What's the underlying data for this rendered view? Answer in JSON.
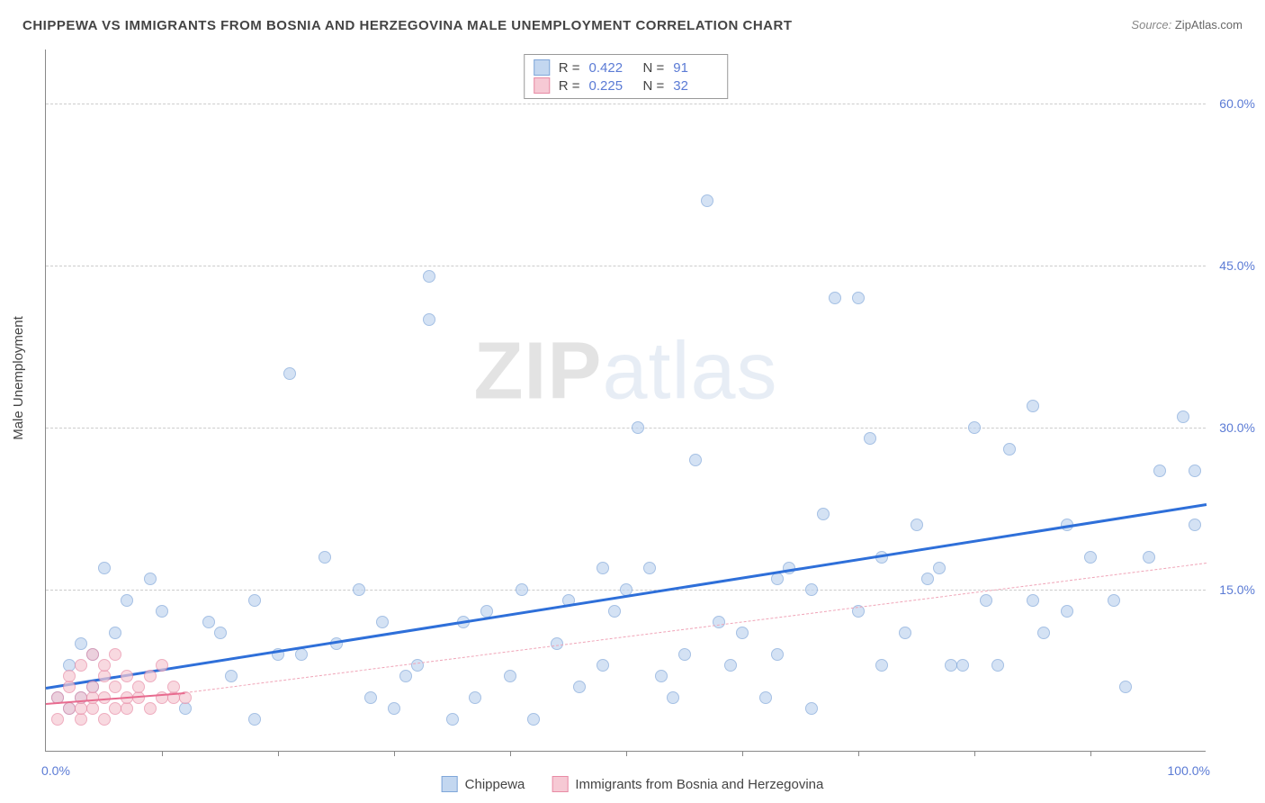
{
  "title": "CHIPPEWA VS IMMIGRANTS FROM BOSNIA AND HERZEGOVINA MALE UNEMPLOYMENT CORRELATION CHART",
  "source_label": "Source:",
  "source_name": "ZipAtlas.com",
  "y_axis_title": "Male Unemployment",
  "watermark_a": "ZIP",
  "watermark_b": "atlas",
  "chart": {
    "type": "scatter",
    "xlim": [
      0,
      100
    ],
    "ylim": [
      0,
      65
    ],
    "y_ticks": [
      15,
      30,
      45,
      60
    ],
    "y_tick_labels": [
      "15.0%",
      "30.0%",
      "45.0%",
      "60.0%"
    ],
    "x_axis_min_label": "0.0%",
    "x_axis_max_label": "100.0%",
    "x_tick_positions": [
      10,
      20,
      30,
      40,
      50,
      60,
      70,
      80,
      90
    ],
    "background": "#ffffff",
    "grid_color": "#cccccc",
    "series": [
      {
        "name": "Chippewa",
        "color_fill": "#c3d7f0",
        "color_stroke": "#7fa6d9",
        "marker_size": 14,
        "opacity": 0.7,
        "trend": {
          "x1": 0,
          "y1": 6.0,
          "x2": 100,
          "y2": 23.0,
          "color": "#2e6fd9",
          "width": 3,
          "dash": "solid"
        },
        "r": "0.422",
        "n": "91",
        "points": [
          [
            5,
            17
          ],
          [
            7,
            14
          ],
          [
            3,
            10
          ],
          [
            2,
            8
          ],
          [
            4,
            6
          ],
          [
            1,
            5
          ],
          [
            2,
            4
          ],
          [
            3,
            5
          ],
          [
            4,
            9
          ],
          [
            6,
            11
          ],
          [
            9,
            16
          ],
          [
            10,
            13
          ],
          [
            12,
            4
          ],
          [
            14,
            12
          ],
          [
            15,
            11
          ],
          [
            16,
            7
          ],
          [
            18,
            3
          ],
          [
            18,
            14
          ],
          [
            20,
            9
          ],
          [
            21,
            35
          ],
          [
            22,
            9
          ],
          [
            24,
            18
          ],
          [
            25,
            10
          ],
          [
            27,
            15
          ],
          [
            28,
            5
          ],
          [
            30,
            4
          ],
          [
            31,
            7
          ],
          [
            32,
            8
          ],
          [
            33,
            44
          ],
          [
            33,
            40
          ],
          [
            35,
            3
          ],
          [
            36,
            12
          ],
          [
            38,
            13
          ],
          [
            40,
            7
          ],
          [
            41,
            15
          ],
          [
            42,
            3
          ],
          [
            44,
            10
          ],
          [
            46,
            6
          ],
          [
            48,
            17
          ],
          [
            49,
            13
          ],
          [
            50,
            15
          ],
          [
            51,
            30
          ],
          [
            52,
            17
          ],
          [
            54,
            5
          ],
          [
            55,
            9
          ],
          [
            56,
            27
          ],
          [
            57,
            51
          ],
          [
            58,
            12
          ],
          [
            60,
            11
          ],
          [
            62,
            5
          ],
          [
            63,
            16
          ],
          [
            64,
            17
          ],
          [
            66,
            4
          ],
          [
            67,
            22
          ],
          [
            68,
            42
          ],
          [
            70,
            42
          ],
          [
            70,
            13
          ],
          [
            72,
            8
          ],
          [
            72,
            18
          ],
          [
            74,
            11
          ],
          [
            75,
            21
          ],
          [
            76,
            16
          ],
          [
            78,
            8
          ],
          [
            79,
            8
          ],
          [
            80,
            30
          ],
          [
            81,
            14
          ],
          [
            82,
            8
          ],
          [
            83,
            28
          ],
          [
            85,
            32
          ],
          [
            86,
            11
          ],
          [
            88,
            21
          ],
          [
            88,
            13
          ],
          [
            90,
            18
          ],
          [
            92,
            14
          ],
          [
            93,
            6
          ],
          [
            95,
            18
          ],
          [
            96,
            26
          ],
          [
            98,
            31
          ],
          [
            99,
            21
          ],
          [
            99,
            26
          ],
          [
            85,
            14
          ],
          [
            63,
            9
          ],
          [
            45,
            14
          ],
          [
            37,
            5
          ],
          [
            29,
            12
          ],
          [
            53,
            7
          ],
          [
            59,
            8
          ],
          [
            77,
            17
          ],
          [
            71,
            29
          ],
          [
            66,
            15
          ],
          [
            48,
            8
          ]
        ]
      },
      {
        "name": "Immigrants from Bosnia and Herzegovina",
        "color_fill": "#f6c9d4",
        "color_stroke": "#e88ba5",
        "marker_size": 14,
        "opacity": 0.7,
        "trend": {
          "x1": 0,
          "y1": 4.5,
          "x2": 12,
          "y2": 5.5,
          "color": "#e86b8f",
          "width": 2.5,
          "dash": "solid"
        },
        "trend_ext": {
          "x1": 12,
          "y1": 5.5,
          "x2": 100,
          "y2": 17.5,
          "color": "#f0a5b8",
          "width": 1.5,
          "dash": "dashed"
        },
        "r": "0.225",
        "n": "32",
        "points": [
          [
            1,
            3
          ],
          [
            1,
            5
          ],
          [
            2,
            4
          ],
          [
            2,
            6
          ],
          [
            2,
            7
          ],
          [
            3,
            3
          ],
          [
            3,
            4
          ],
          [
            3,
            5
          ],
          [
            3,
            8
          ],
          [
            4,
            4
          ],
          [
            4,
            5
          ],
          [
            4,
            6
          ],
          [
            4,
            9
          ],
          [
            5,
            3
          ],
          [
            5,
            5
          ],
          [
            5,
            7
          ],
          [
            5,
            8
          ],
          [
            6,
            4
          ],
          [
            6,
            6
          ],
          [
            6,
            9
          ],
          [
            7,
            4
          ],
          [
            7,
            5
          ],
          [
            7,
            7
          ],
          [
            8,
            5
          ],
          [
            8,
            6
          ],
          [
            9,
            4
          ],
          [
            9,
            7
          ],
          [
            10,
            5
          ],
          [
            10,
            8
          ],
          [
            11,
            5
          ],
          [
            11,
            6
          ],
          [
            12,
            5
          ]
        ]
      }
    ]
  },
  "stat_legend": {
    "r_label": "R =",
    "n_label": "N ="
  },
  "bottom_legend": {
    "items": [
      "Chippewa",
      "Immigrants from Bosnia and Herzegovina"
    ]
  }
}
